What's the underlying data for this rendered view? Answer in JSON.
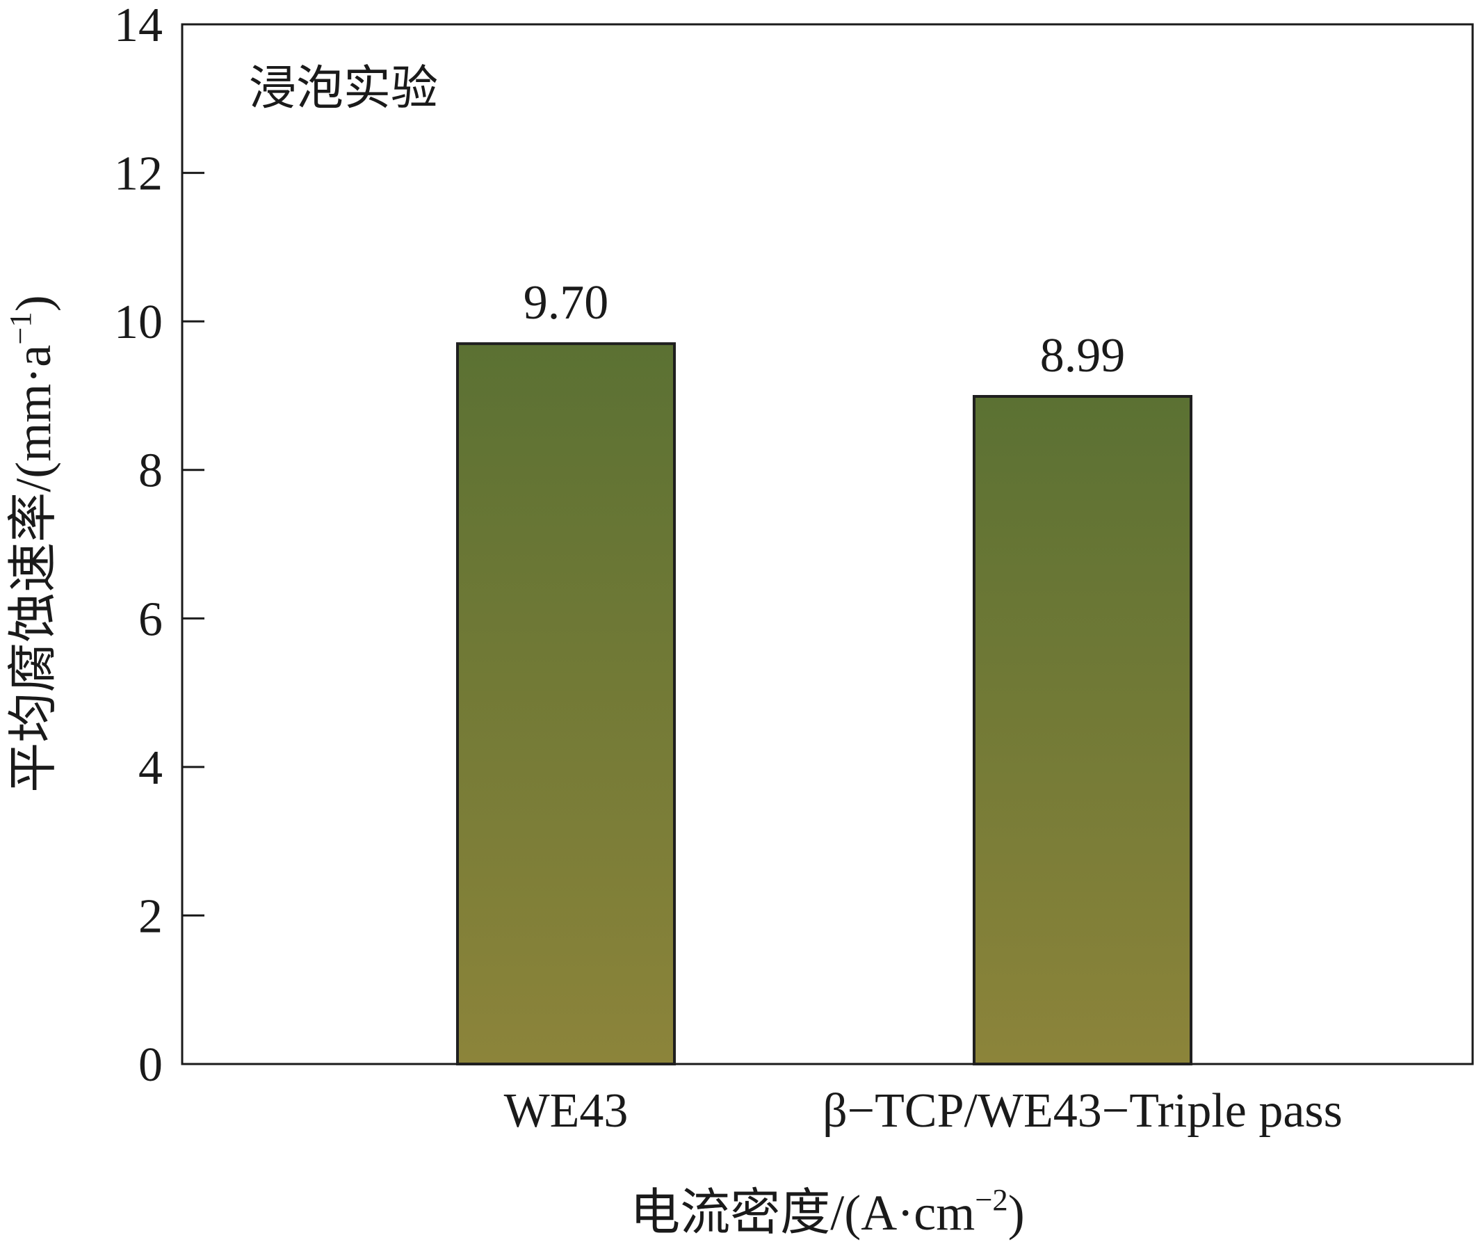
{
  "chart_data": {
    "type": "bar",
    "annotation": "浸泡实验",
    "categories": [
      "WE43",
      "β−TCP/WE43−Triple pass"
    ],
    "values": [
      9.7,
      8.99
    ],
    "value_labels": [
      "9.70",
      "8.99"
    ],
    "ylim": [
      0,
      14
    ],
    "yticks": [
      0,
      2,
      4,
      6,
      8,
      10,
      12,
      14
    ],
    "xlabel_main": "电流密度/(A·cm",
    "xlabel_sup": "−2",
    "xlabel_end": ")",
    "ylabel_main": "平均腐蚀速率/(mm·a",
    "ylabel_sup": "−1",
    "ylabel_end": ")",
    "grid": false,
    "colors": {
      "bar_top": "#5b7133",
      "bar_bottom": "#8c843a",
      "bar_edge": "#1f1f1f",
      "axis": "#1a1a1a"
    }
  }
}
